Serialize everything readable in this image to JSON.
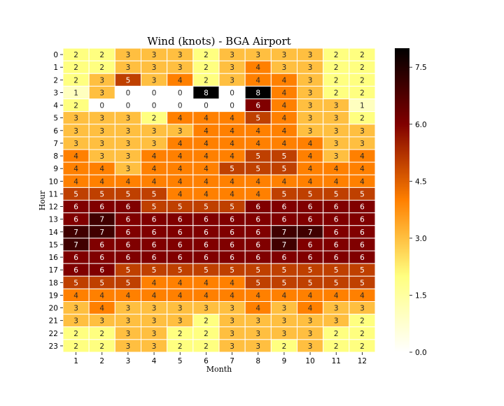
{
  "chart_data": {
    "type": "heatmap",
    "title": "Wind (knots) - BGA Airport",
    "xlabel": "Month",
    "ylabel": "Hour",
    "x_categories": [
      "1",
      "2",
      "3",
      "4",
      "5",
      "6",
      "7",
      "8",
      "9",
      "10",
      "11",
      "12"
    ],
    "y_categories": [
      "0",
      "1",
      "2",
      "3",
      "4",
      "5",
      "6",
      "7",
      "8",
      "9",
      "10",
      "11",
      "12",
      "13",
      "14",
      "15",
      "16",
      "17",
      "18",
      "19",
      "20",
      "21",
      "22",
      "23"
    ],
    "values": [
      [
        2,
        2,
        3,
        3,
        3,
        2,
        3,
        3,
        3,
        3,
        2,
        2
      ],
      [
        2,
        2,
        3,
        3,
        3,
        2,
        3,
        4,
        3,
        3,
        2,
        2
      ],
      [
        2,
        3,
        5,
        3,
        4,
        2,
        3,
        4,
        4,
        3,
        2,
        2
      ],
      [
        1,
        3,
        0,
        0,
        0,
        8,
        0,
        8,
        4,
        3,
        2,
        2
      ],
      [
        2,
        0,
        0,
        0,
        0,
        0,
        0,
        6,
        4,
        3,
        3,
        1
      ],
      [
        3,
        3,
        3,
        2,
        4,
        4,
        4,
        5,
        4,
        3,
        3,
        2
      ],
      [
        3,
        3,
        3,
        3,
        3,
        4,
        4,
        4,
        4,
        3,
        3,
        3
      ],
      [
        3,
        3,
        3,
        3,
        4,
        4,
        4,
        4,
        4,
        4,
        3,
        3
      ],
      [
        4,
        3,
        3,
        4,
        4,
        4,
        4,
        5,
        5,
        4,
        3,
        4
      ],
      [
        4,
        4,
        3,
        4,
        4,
        4,
        5,
        5,
        5,
        4,
        4,
        4
      ],
      [
        4,
        4,
        4,
        4,
        4,
        4,
        4,
        4,
        4,
        4,
        4,
        4
      ],
      [
        5,
        5,
        5,
        5,
        4,
        4,
        4,
        4,
        5,
        5,
        5,
        5
      ],
      [
        6,
        6,
        6,
        5,
        5,
        5,
        5,
        6,
        6,
        6,
        6,
        6
      ],
      [
        6,
        7,
        6,
        6,
        6,
        6,
        6,
        6,
        6,
        6,
        6,
        6
      ],
      [
        7,
        7,
        6,
        6,
        6,
        6,
        6,
        6,
        7,
        7,
        6,
        6
      ],
      [
        7,
        6,
        6,
        6,
        6,
        6,
        6,
        6,
        7,
        6,
        6,
        6
      ],
      [
        6,
        6,
        6,
        6,
        6,
        6,
        6,
        6,
        6,
        6,
        6,
        6
      ],
      [
        6,
        6,
        5,
        5,
        5,
        5,
        5,
        5,
        5,
        5,
        5,
        5
      ],
      [
        5,
        5,
        5,
        4,
        4,
        4,
        4,
        5,
        5,
        5,
        5,
        5
      ],
      [
        4,
        4,
        4,
        4,
        4,
        4,
        4,
        4,
        4,
        4,
        4,
        4
      ],
      [
        3,
        4,
        3,
        3,
        3,
        3,
        3,
        4,
        3,
        4,
        3,
        3
      ],
      [
        3,
        3,
        3,
        3,
        3,
        2,
        3,
        3,
        3,
        3,
        3,
        2
      ],
      [
        2,
        2,
        3,
        3,
        2,
        2,
        3,
        3,
        3,
        3,
        2,
        2
      ],
      [
        2,
        2,
        3,
        3,
        2,
        2,
        3,
        3,
        2,
        3,
        2,
        2
      ]
    ],
    "colorscale": "afmhot_r",
    "vmin": 0,
    "vmax": 8,
    "colorbar_ticks": [
      0,
      1.5,
      3,
      4.5,
      6,
      7.5
    ],
    "colorbar_tick_labels": [
      "0.0",
      "1.5",
      "3.0",
      "4.5",
      "6.0",
      "7.5"
    ],
    "annotations": "cell values shown",
    "grid": false,
    "cell_border_color": "#ffffff"
  }
}
